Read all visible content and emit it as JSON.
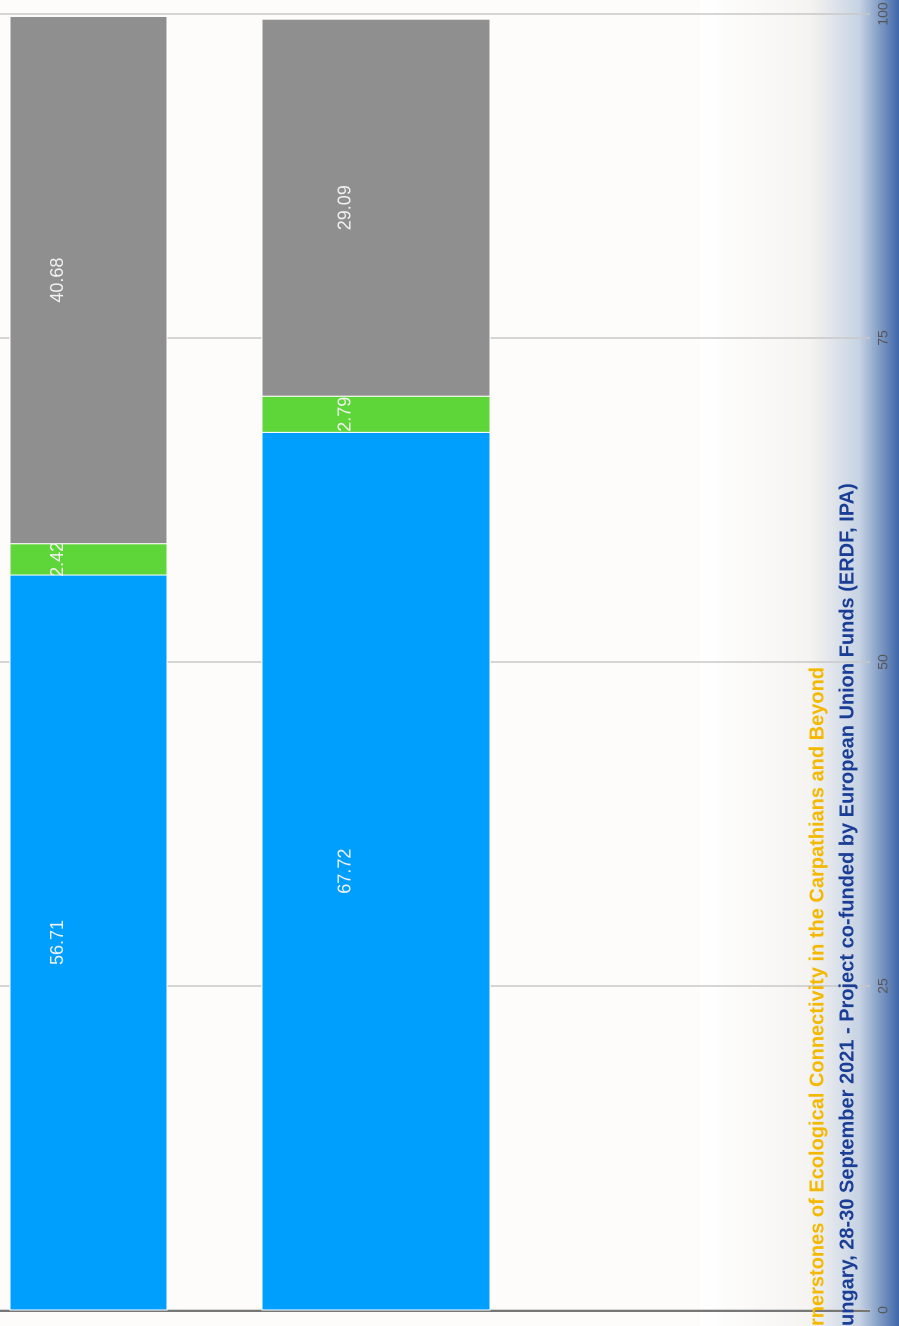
{
  "chart_data": {
    "type": "stacked-bar",
    "annotations": [
      "rnerstones of Ecological Connectivity in the Carpathians and Beyond",
      "ungary, 28-30 September 2021 - Project co-funded by European Union Funds (ERDF, IPA)"
    ],
    "categories": [
      null,
      null
    ],
    "series": [
      {
        "color": "#009ffd",
        "values": [
          56.71,
          67.72
        ]
      },
      {
        "color": "#5ed639",
        "values": [
          2.42,
          2.79
        ]
      },
      {
        "color": "#8f8f8f",
        "values": [
          40.68,
          29.09
        ]
      }
    ],
    "ylim": [
      0,
      100
    ],
    "yticks": [
      0,
      25,
      50,
      75,
      100
    ],
    "grid": true
  }
}
